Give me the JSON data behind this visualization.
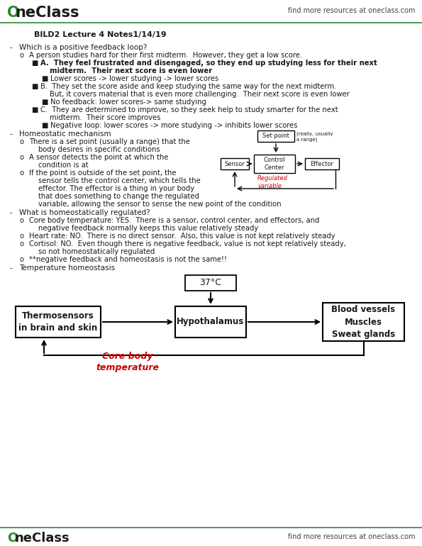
{
  "background": "#ffffff",
  "text_color": "#1a1a1a",
  "red_color": "#cc0000",
  "green_color": "#2d8a2d",
  "title": "BILD2 Lecture 4 Notes1/14/19",
  "header_right": "find more resources at oneclass.com",
  "footer_right": "find more resources at oneclass.com",
  "diagram1": {
    "set_point_box": "Set point",
    "set_point_note": "(really, usually\na range)",
    "sensor_box": "Sensor",
    "control_box": "Control\nCenter",
    "effector_box": "Effector",
    "regulated_label": "Regulated\nvariable"
  },
  "diagram2": {
    "top_box": "37°C",
    "left_box": "Thermosensors\nin brain and skin",
    "mid_box": "Hypothalamus",
    "right_box": "Blood vessels\nMuscles\nSweat glands",
    "bottom_label": "Core body\ntemperature"
  }
}
